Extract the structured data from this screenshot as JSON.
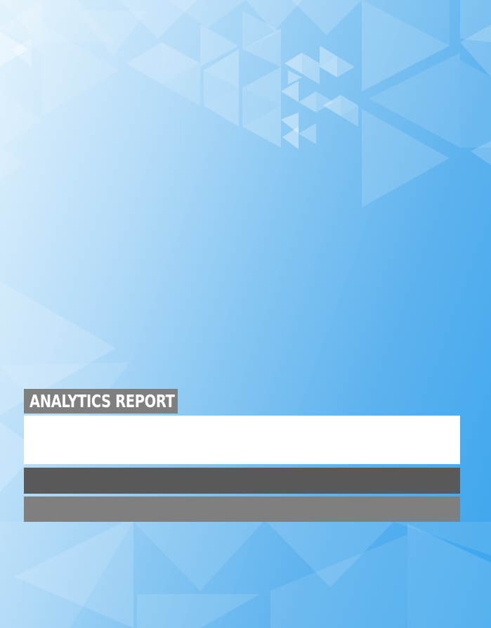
{
  "cover": {
    "label": "ANALYTICS REPORT"
  },
  "colors": {
    "label_bg": "#7f7f7f",
    "white_band": "#ffffff",
    "dark_band": "#595959",
    "gray_band": "#7f7f7f",
    "background_light": "#e3f3fd",
    "background_dark": "#3aa5ed"
  }
}
